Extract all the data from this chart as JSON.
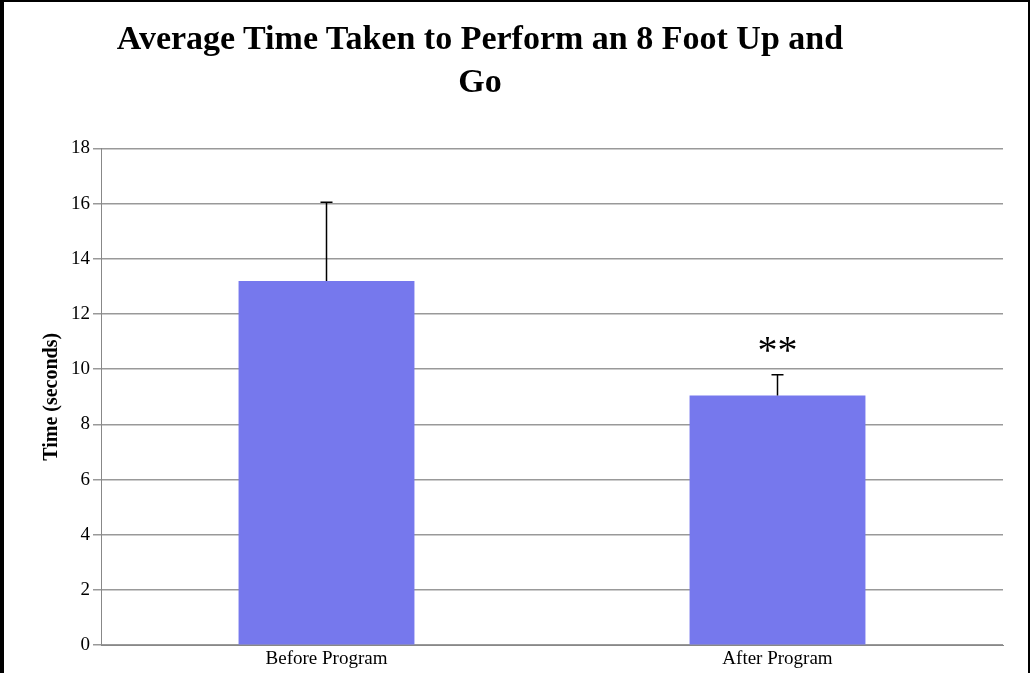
{
  "chart_data": {
    "type": "bar",
    "title": "Average Time Taken to Perform an 8 Foot Up and Go",
    "ylabel": "Time (seconds)",
    "categories": [
      "Before Program",
      "After Program"
    ],
    "values": [
      13.2,
      9.05
    ],
    "color": "#7678ed",
    "errors": [
      [
        13.2,
        16.05
      ],
      [
        9.05,
        9.8
      ]
    ],
    "ylim": [
      0,
      18
    ],
    "yticks": [
      0,
      2,
      4,
      6,
      8,
      10,
      12,
      14,
      16,
      18
    ],
    "grid": "y",
    "legend": false,
    "annotations": [
      {
        "text": "**",
        "x": "After Program",
        "y": 9.8
      }
    ]
  }
}
